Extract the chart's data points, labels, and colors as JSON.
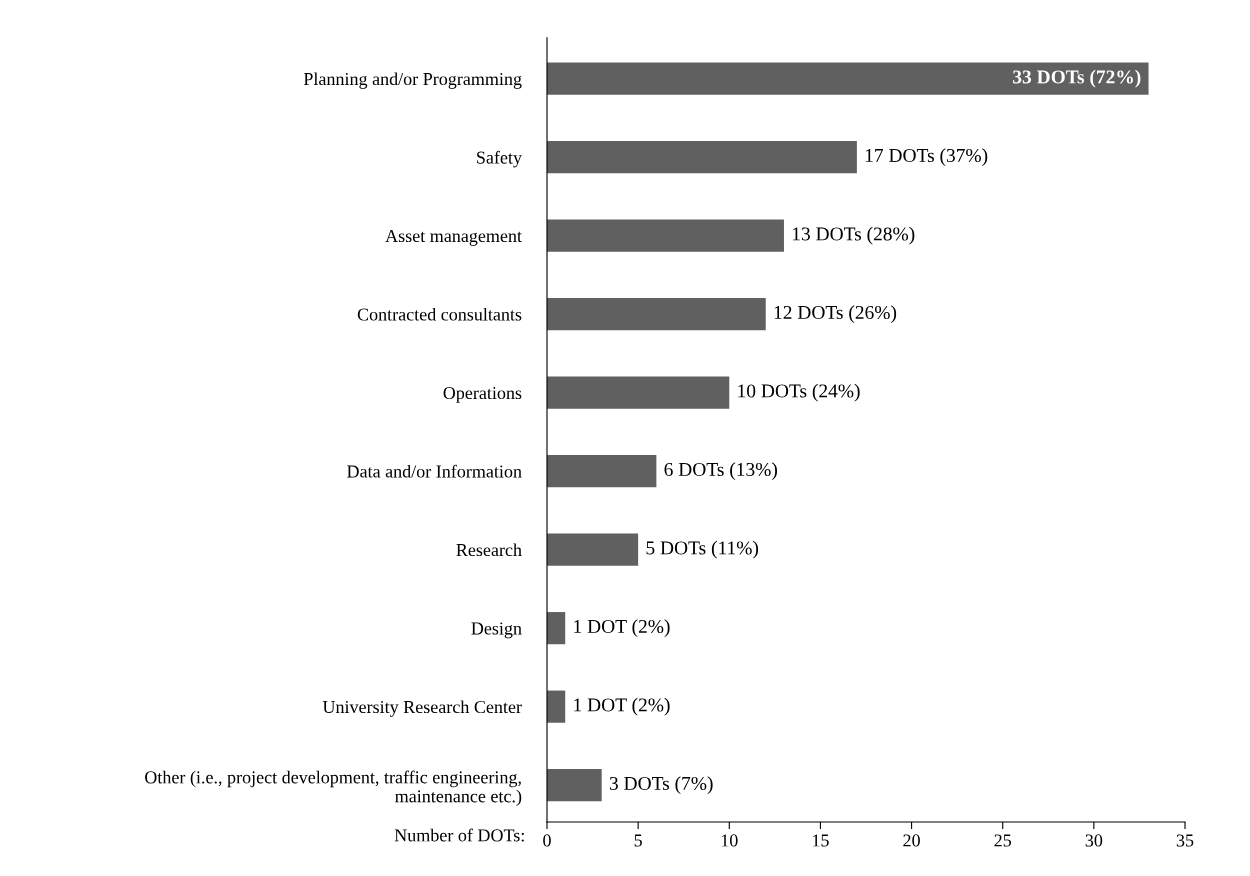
{
  "chart_data": {
    "type": "bar",
    "orientation": "horizontal",
    "xlabel": "Number of DOTs:",
    "categories": [
      "Planning and/or Programming",
      "Safety",
      "Asset management",
      "Contracted consultants",
      "Operations",
      "Data and/or Information",
      "Research",
      "Design",
      "University Research Center",
      "Other (i.e., project development, traffic engineering,\nmaintenance etc.)"
    ],
    "values": [
      33,
      17,
      13,
      12,
      10,
      6,
      5,
      1,
      1,
      3
    ],
    "value_labels": [
      "33 DOTs (72%)",
      "17 DOTs (37%)",
      "13 DOTs (28%)",
      "12 DOTs (26%)",
      "10 DOTs (24%)",
      "6 DOTs (13%)",
      "5 DOTs (11%)",
      "1 DOT (2%)",
      "1 DOT (2%)",
      "3 DOTs (7%)"
    ],
    "color": "#606060",
    "xlim": [
      0,
      35
    ],
    "xticks": [
      0,
      5,
      10,
      15,
      20,
      25,
      30,
      35
    ],
    "grid": false
  }
}
